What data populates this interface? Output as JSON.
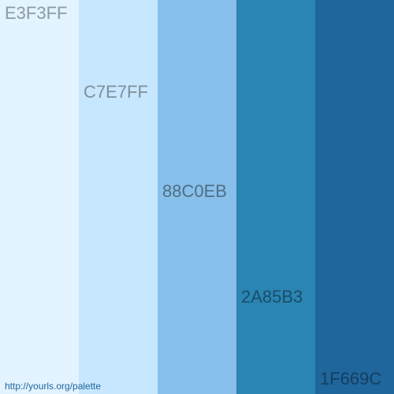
{
  "swatches": [
    {
      "hex": "E3F3FF",
      "color": "#E3F3FF"
    },
    {
      "hex": "C7E7FF",
      "color": "#C7E7FF"
    },
    {
      "hex": "88C0EB",
      "color": "#88C0EB"
    },
    {
      "hex": "2A85B3",
      "color": "#2A85B3"
    },
    {
      "hex": "1F669C",
      "color": "#1F669C"
    }
  ],
  "footer": {
    "url_text": "http://yourls.org/palette"
  }
}
